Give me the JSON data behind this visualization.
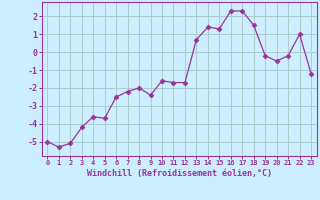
{
  "x": [
    0,
    1,
    2,
    3,
    4,
    5,
    6,
    7,
    8,
    9,
    10,
    11,
    12,
    13,
    14,
    15,
    16,
    17,
    18,
    19,
    20,
    21,
    22,
    23
  ],
  "y": [
    -5.0,
    -5.3,
    -5.1,
    -4.2,
    -3.6,
    -3.7,
    -2.5,
    -2.2,
    -2.0,
    -2.4,
    -1.6,
    -1.7,
    -1.7,
    0.7,
    1.4,
    1.3,
    2.3,
    2.3,
    1.5,
    -0.2,
    -0.5,
    -0.2,
    1.0,
    -1.2
  ],
  "line_color": "#993399",
  "marker": "D",
  "marker_size": 2.5,
  "bg_color": "#cceeff",
  "grid_color": "#aacccc",
  "xlabel": "Windchill (Refroidissement éolien,°C)",
  "xlabel_color": "#993399",
  "tick_color": "#993399",
  "ylabel_ticks": [
    -5,
    -4,
    -3,
    -2,
    -1,
    0,
    1,
    2
  ],
  "xlim": [
    -0.5,
    23.5
  ],
  "ylim": [
    -5.8,
    2.8
  ]
}
